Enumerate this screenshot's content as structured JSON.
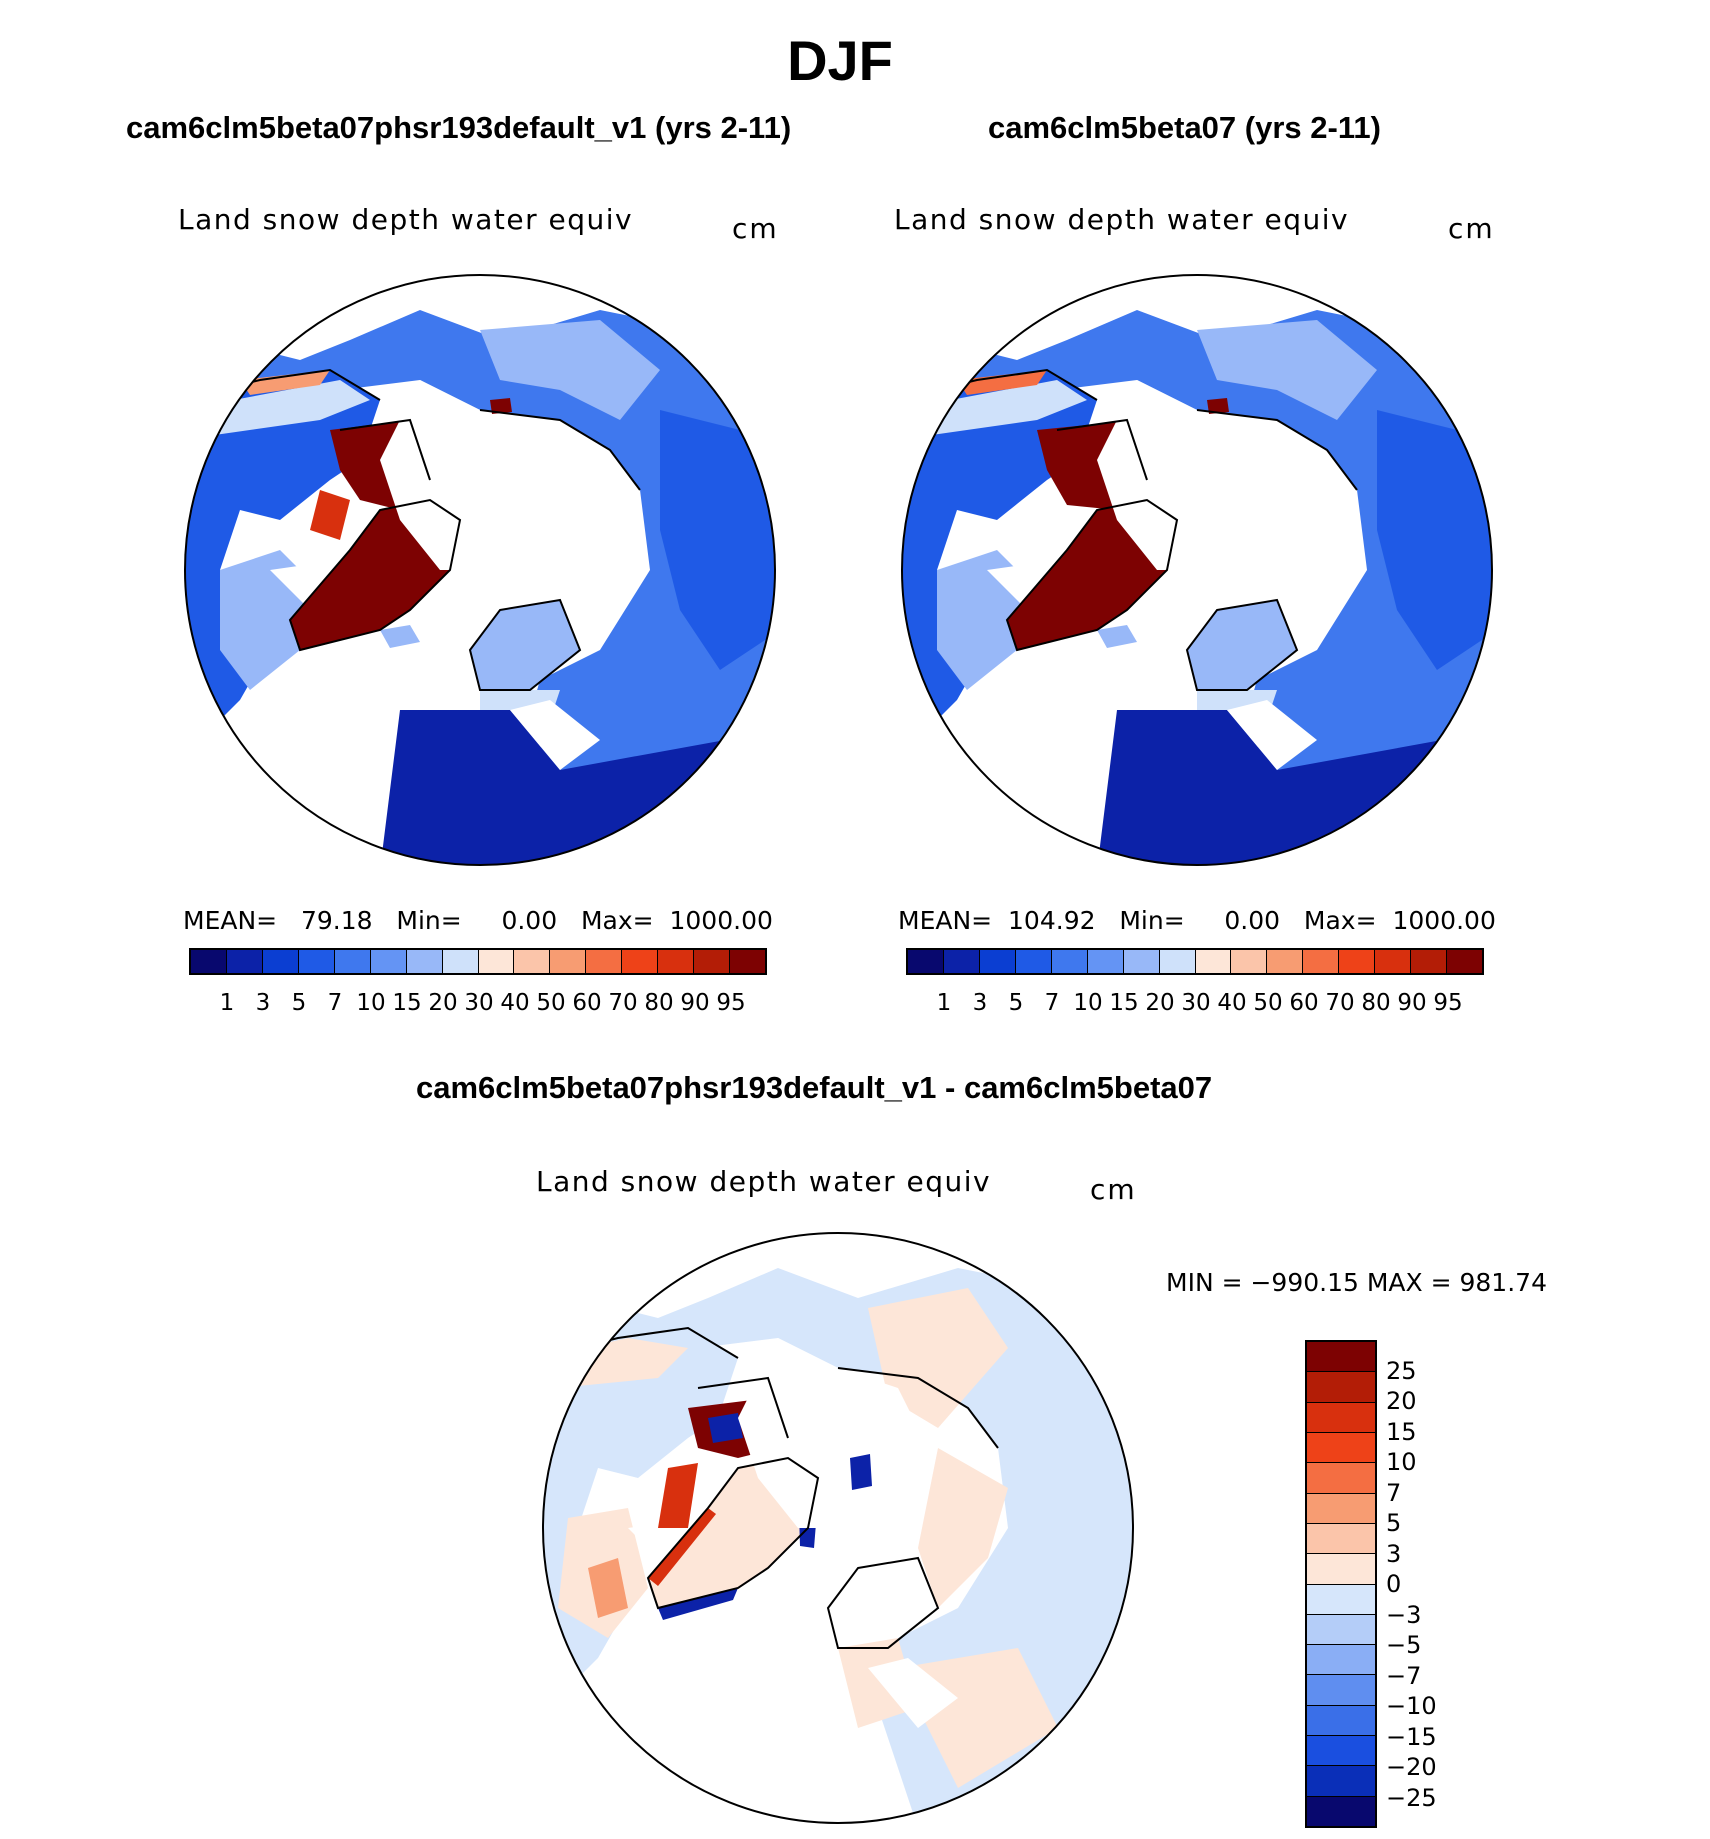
{
  "title": "DJF",
  "panels": [
    {
      "case_title": "cam6clm5beta07phsr193default_v1 (yrs 2-11)",
      "variable": "Land snow depth water equiv",
      "units": "cm",
      "stats": {
        "mean_label": "MEAN=",
        "mean": "79.18",
        "min_label": "Min=",
        "min": "0.00",
        "max_label": "Max=",
        "max": "1000.00"
      }
    },
    {
      "case_title": "cam6clm5beta07 (yrs 2-11)",
      "variable": "Land snow depth water equiv",
      "units": "cm",
      "stats": {
        "mean_label": "MEAN=",
        "mean": "104.92",
        "min_label": "Min=",
        "min": "0.00",
        "max_label": "Max=",
        "max": "1000.00"
      }
    }
  ],
  "abs_colorbar": {
    "colors": [
      "#08086e",
      "#0c22a8",
      "#0b3ed2",
      "#1f5ae6",
      "#3f78ee",
      "#6494f4",
      "#98b8f8",
      "#cfe1fa",
      "#fde6d8",
      "#fbc5aa",
      "#f79c72",
      "#f46e42",
      "#ee4218",
      "#d8300e",
      "#b31d06",
      "#7d0202"
    ],
    "ticks": [
      "1",
      "3",
      "5",
      "7",
      "10",
      "15",
      "20",
      "30",
      "40",
      "50",
      "60",
      "70",
      "80",
      "90",
      "95"
    ]
  },
  "diff_panel": {
    "title": "cam6clm5beta07phsr193default_v1 - cam6clm5beta07",
    "variable": "Land snow depth water equiv",
    "units": "cm",
    "minmax": "MIN = −990.15 MAX = 981.74"
  },
  "diff_colorbar": {
    "colors_top_to_bottom": [
      "#7d0202",
      "#b31d06",
      "#d8300e",
      "#ee4218",
      "#f46e42",
      "#f79c72",
      "#fbc5aa",
      "#fde6d8",
      "#d6e6fb",
      "#b4cdf8",
      "#8aaef5",
      "#5f8ef0",
      "#3a6fe8",
      "#1a4fe0",
      "#0a2fb8",
      "#08086e"
    ],
    "ticks": [
      "25",
      "20",
      "15",
      "10",
      "7",
      "5",
      "3",
      "0",
      "−3",
      "−5",
      "−7",
      "−10",
      "−15",
      "−20",
      "−25"
    ]
  },
  "map_colors": {
    "land_blue_dark": "#0b3ed2",
    "land_blue_mid": "#3f78ee",
    "land_blue_light": "#98b8f8",
    "greenland_red": "#7d0202",
    "diff_light_blue": "#d6e6fb",
    "diff_light_orange": "#fde6d8",
    "diff_orange": "#f79c72"
  }
}
